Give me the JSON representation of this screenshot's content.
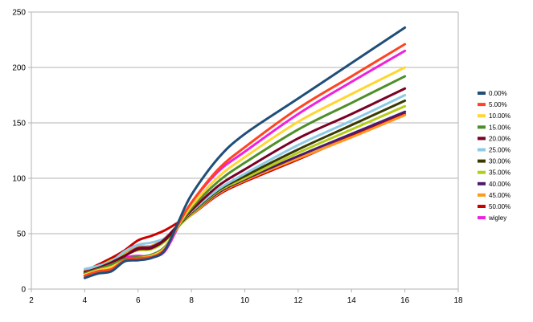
{
  "chart_data": {
    "type": "line",
    "title": "",
    "xlabel": "",
    "ylabel": "",
    "xlim": [
      2,
      18
    ],
    "ylim": [
      0,
      250
    ],
    "x_ticks": [
      2,
      4,
      6,
      8,
      10,
      12,
      14,
      16,
      18
    ],
    "y_ticks": [
      0,
      50,
      100,
      150,
      200,
      250
    ],
    "grid": "horizontal",
    "legend_position": "right",
    "x": [
      4,
      4.5,
      5,
      5.5,
      6,
      6.5,
      7,
      7.5,
      8,
      9,
      10,
      12,
      14,
      16
    ],
    "series": [
      {
        "name": "0.00%",
        "color": "#1f4e79",
        "values": [
          10,
          14,
          16,
          25,
          26,
          28,
          35,
          60,
          85,
          118,
          140,
          172,
          204,
          236
        ]
      },
      {
        "name": "5.00%",
        "color": "#ff4422",
        "values": [
          12,
          16,
          18,
          26,
          28,
          29,
          36,
          58,
          78,
          108,
          128,
          163,
          192,
          221
        ]
      },
      {
        "name": "10.00%",
        "color": "#ffd633",
        "values": [
          13,
          17,
          20,
          26,
          28,
          30,
          37,
          57,
          75,
          101,
          119,
          151,
          176,
          200
        ]
      },
      {
        "name": "15.00%",
        "color": "#4e8f2a",
        "values": [
          14,
          18,
          22,
          27,
          29,
          31,
          38,
          56,
          73,
          97,
          114,
          144,
          168,
          192
        ]
      },
      {
        "name": "20.00%",
        "color": "#7b0026",
        "values": [
          15,
          19,
          24,
          30,
          36,
          37,
          45,
          58,
          71,
          93,
          108,
          136,
          158,
          181
        ]
      },
      {
        "name": "25.00%",
        "color": "#8ecae6",
        "values": [
          18,
          21,
          25,
          34,
          40,
          42,
          46,
          58,
          70,
          90,
          104,
          130,
          152,
          175
        ]
      },
      {
        "name": "30.00%",
        "color": "#3a3a00",
        "values": [
          14,
          18,
          22,
          30,
          36,
          37,
          44,
          57,
          69,
          89,
          102,
          126,
          148,
          170
        ]
      },
      {
        "name": "35.00%",
        "color": "#b5cc18",
        "values": [
          15,
          20,
          26,
          31,
          35,
          36,
          43,
          56,
          68,
          88,
          100,
          123,
          144,
          165
        ]
      },
      {
        "name": "40.00%",
        "color": "#4b1a6e",
        "values": [
          12,
          17,
          22,
          30,
          37,
          38,
          45,
          57,
          68,
          87,
          99,
          120,
          140,
          160
        ]
      },
      {
        "name": "45.00%",
        "color": "#ff9922",
        "values": [
          13,
          18,
          24,
          32,
          38,
          39,
          46,
          57,
          67,
          86,
          98,
          118,
          137,
          157
        ]
      },
      {
        "name": "50.00%",
        "color": "#cc0000",
        "values": [
          16,
          22,
          28,
          35,
          44,
          48,
          53,
          60,
          67,
          85,
          97,
          117,
          138,
          158
        ]
      },
      {
        "name": "wigley",
        "color": "#ee22dd",
        "values": [
          12,
          16,
          20,
          28,
          30,
          29,
          34,
          56,
          78,
          106,
          124,
          158,
          187,
          215
        ]
      }
    ]
  }
}
